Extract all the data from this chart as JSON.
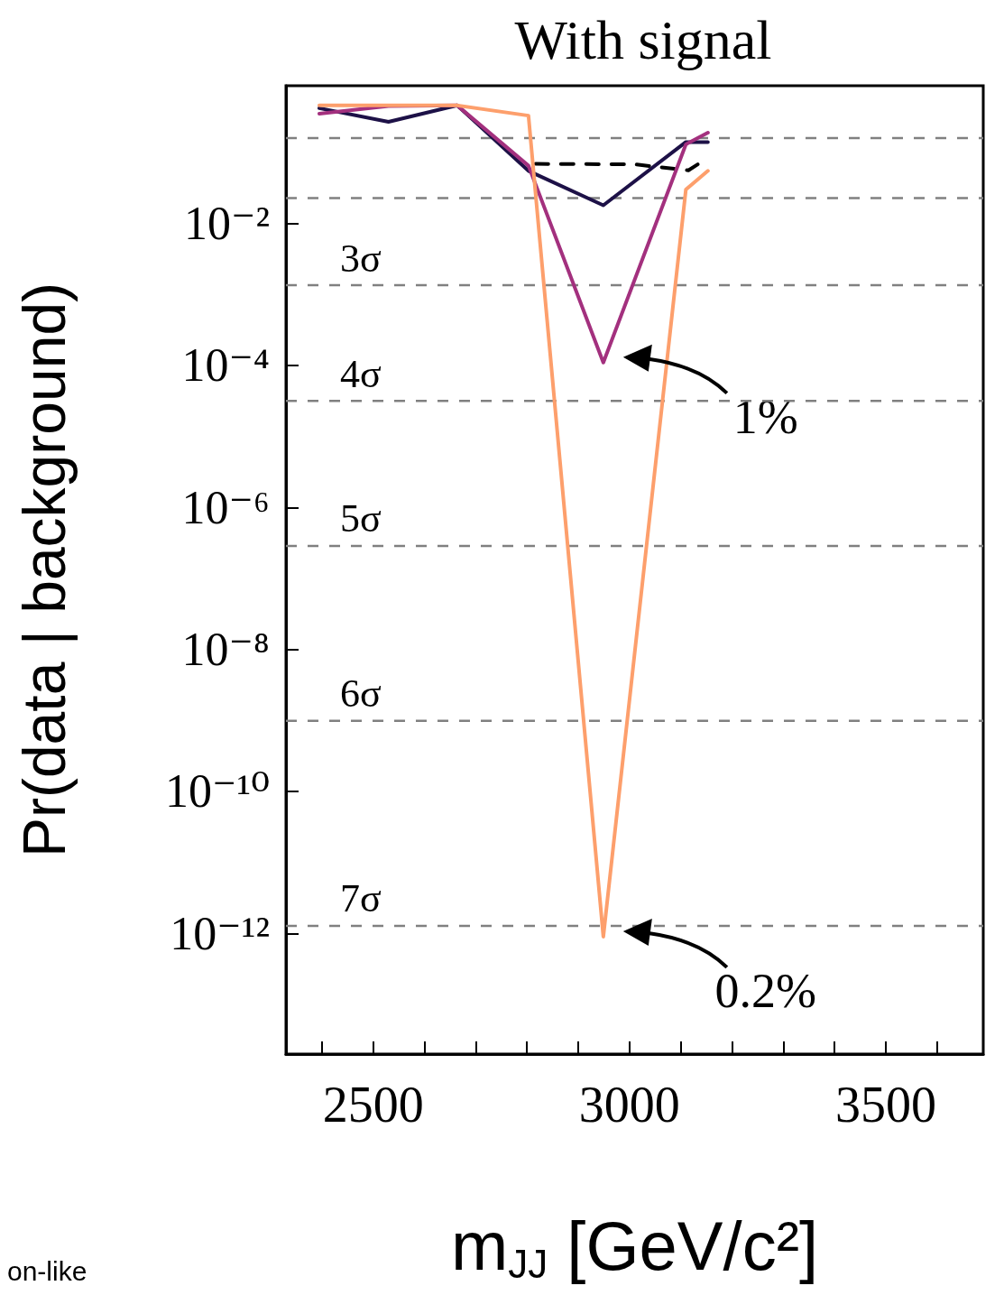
{
  "chart_data": {
    "type": "line",
    "title": "With signal",
    "xlabel": "m$_{JJ}$ [GeV/c²]",
    "ylabel": "Pr(data | background)",
    "log": "y",
    "xlim": [
      2330,
      3690
    ],
    "ylim": [
      2e-14,
      0.87
    ],
    "xticks": [
      {
        "value": 2400,
        "label": null
      },
      2500,
      {
        "value": 2600,
        "label": null
      },
      {
        "value": 2700,
        "label": null
      },
      {
        "value": 2800,
        "label": null
      },
      {
        "value": 2900,
        "label": null
      },
      3000,
      {
        "value": 3100,
        "label": null
      },
      {
        "value": 3200,
        "label": null
      },
      {
        "value": 3300,
        "label": null
      },
      {
        "value": 3400,
        "label": null
      },
      3500,
      {
        "value": 3600,
        "label": null
      }
    ],
    "yticks": [
      {
        "value": 1e-12,
        "label": "10⁻¹²"
      },
      {
        "value": 1e-10,
        "label": "10⁻¹⁰"
      },
      {
        "value": 1e-08,
        "label": "10⁻⁸"
      },
      {
        "value": 1e-06,
        "label": "10⁻⁶"
      },
      {
        "value": 0.0001,
        "label": "10⁻⁴"
      },
      {
        "value": 0.01,
        "label": "10⁻²"
      }
    ],
    "x": [
      2395,
      2530,
      2664,
      2803,
      2949,
      3110,
      3153
    ],
    "series": [
      {
        "color": "#1d1147",
        "values": [
          0.42,
          0.27,
          0.46,
          0.055,
          0.018,
          0.14,
          0.14
        ]
      },
      {
        "color": "#000000",
        "line_style": "dashed",
        "x": [
          2817,
          3010,
          3115,
          3141
        ],
        "values": [
          0.069,
          0.068,
          0.056,
          0.074
        ]
      },
      {
        "color": "#a3307e",
        "values": [
          0.35,
          0.45,
          0.46,
          0.065,
          0.00011,
          0.13,
          0.19
        ]
      },
      {
        "color": "#fd9f6c",
        "values": [
          0.46,
          0.46,
          0.46,
          0.33,
          9e-13,
          0.03,
          0.055
        ]
      }
    ],
    "ref_lines": [
      {
        "axis": "y",
        "value": 0.159,
        "label": null,
        "color": "#808080",
        "line_style": "dashed"
      },
      {
        "axis": "y",
        "value": 0.0228,
        "label": null,
        "color": "#808080",
        "line_style": "dashed"
      },
      {
        "axis": "y",
        "value": 0.00135,
        "label": "3σ",
        "color": "#808080",
        "line_style": "dashed"
      },
      {
        "axis": "y",
        "value": 3.17e-05,
        "label": "4σ",
        "color": "#808080",
        "line_style": "dashed"
      },
      {
        "axis": "y",
        "value": 2.87e-07,
        "label": "5σ",
        "color": "#808080",
        "line_style": "dashed"
      },
      {
        "axis": "y",
        "value": 9.87e-10,
        "label": "6σ",
        "color": "#808080",
        "line_style": "dashed"
      },
      {
        "axis": "y",
        "value": 1.28e-12,
        "label": "7σ",
        "color": "#808080",
        "line_style": "dashed"
      }
    ],
    "annotations": [
      {
        "text": "1%",
        "x": 2949,
        "y": 0.00011
      },
      {
        "text": "0.2%",
        "x": 2949,
        "y": 9e-13
      },
      "on-like"
    ],
    "marker": "none",
    "grid": false
  }
}
